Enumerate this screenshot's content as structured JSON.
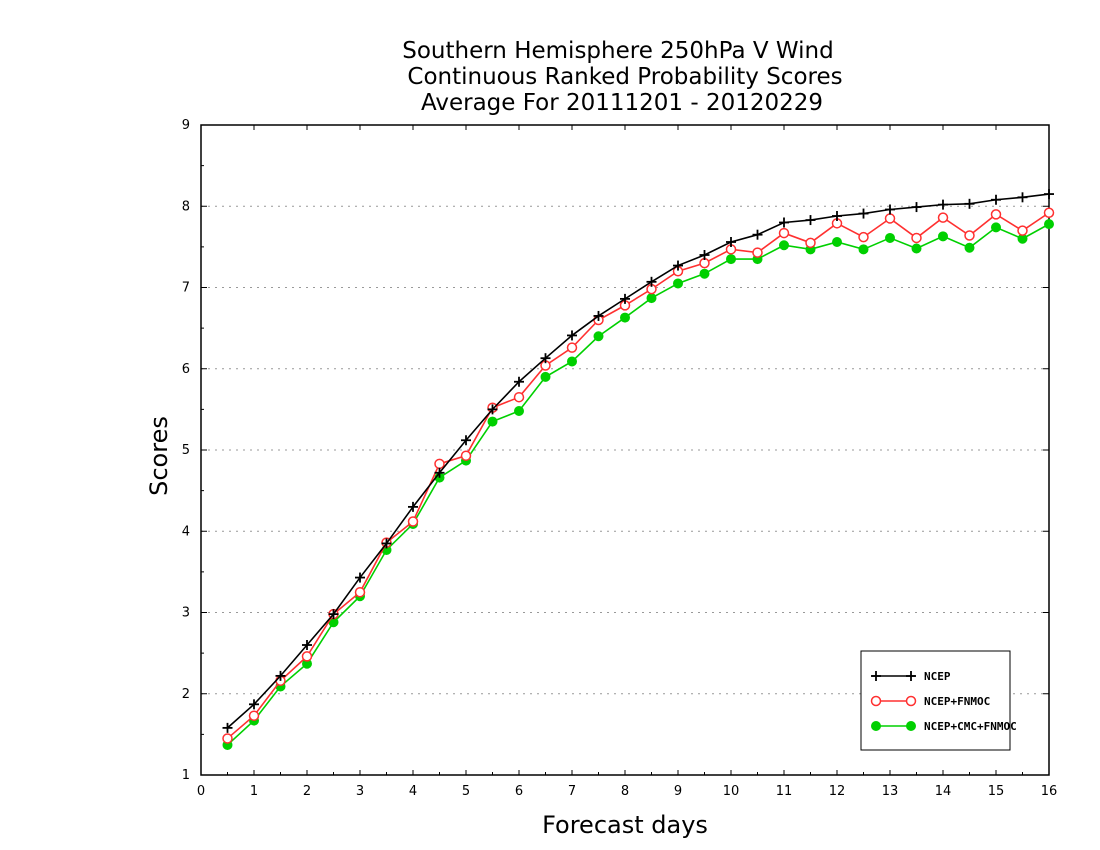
{
  "chart_data": {
    "type": "line",
    "title": [
      "Southern Hemisphere 250hPa V Wind",
      "Continuous Ranked Probability Scores",
      "Average For 20111201 - 20120229"
    ],
    "xlabel": "Forecast days",
    "ylabel": "Scores",
    "xlim": [
      0,
      16
    ],
    "ylim": [
      1,
      9
    ],
    "xticks": [
      "0",
      "1",
      "2",
      "3",
      "4",
      "5",
      "6",
      "7",
      "8",
      "9",
      "10",
      "11",
      "12",
      "13",
      "14",
      "15",
      "16"
    ],
    "yticks": [
      "1",
      "2",
      "3",
      "4",
      "5",
      "6",
      "7",
      "8",
      "9"
    ],
    "grid": "horizontal dotted",
    "legend_position": "bottom-right",
    "x": [
      0.5,
      1,
      1.5,
      2,
      2.5,
      3,
      3.5,
      4,
      4.5,
      5,
      5.5,
      6,
      6.5,
      7,
      7.5,
      8,
      8.5,
      9,
      9.5,
      10,
      10.5,
      11,
      11.5,
      12,
      12.5,
      13,
      13.5,
      14,
      14.5,
      15,
      15.5,
      16
    ],
    "series": [
      {
        "name": "NCEP",
        "color": "#000000",
        "marker": "plus",
        "values": [
          1.58,
          1.87,
          2.22,
          2.6,
          2.98,
          3.43,
          3.85,
          4.3,
          4.72,
          5.12,
          5.5,
          5.84,
          6.13,
          6.41,
          6.65,
          6.86,
          7.07,
          7.27,
          7.4,
          7.56,
          7.65,
          7.8,
          7.83,
          7.88,
          7.91,
          7.96,
          7.99,
          8.02,
          8.03,
          8.08,
          8.11,
          8.15
        ]
      },
      {
        "name": "NCEP+FNMOC",
        "color": "#ff3030",
        "marker": "open-circle",
        "values": [
          1.45,
          1.73,
          2.16,
          2.46,
          2.98,
          3.25,
          3.86,
          4.12,
          4.83,
          4.93,
          5.52,
          5.65,
          6.04,
          6.26,
          6.6,
          6.78,
          6.98,
          7.2,
          7.3,
          7.47,
          7.43,
          7.67,
          7.55,
          7.79,
          7.62,
          7.85,
          7.61,
          7.86,
          7.64,
          7.9,
          7.7,
          7.92
        ]
      },
      {
        "name": "NCEP+CMC+FNMOC",
        "color": "#00d000",
        "marker": "filled-circle",
        "values": [
          1.37,
          1.67,
          2.09,
          2.37,
          2.88,
          3.2,
          3.77,
          4.09,
          4.66,
          4.87,
          5.35,
          5.48,
          5.9,
          6.09,
          6.4,
          6.63,
          6.87,
          7.05,
          7.17,
          7.35,
          7.35,
          7.52,
          7.47,
          7.56,
          7.47,
          7.61,
          7.48,
          7.63,
          7.49,
          7.74,
          7.6,
          7.78
        ]
      }
    ]
  }
}
